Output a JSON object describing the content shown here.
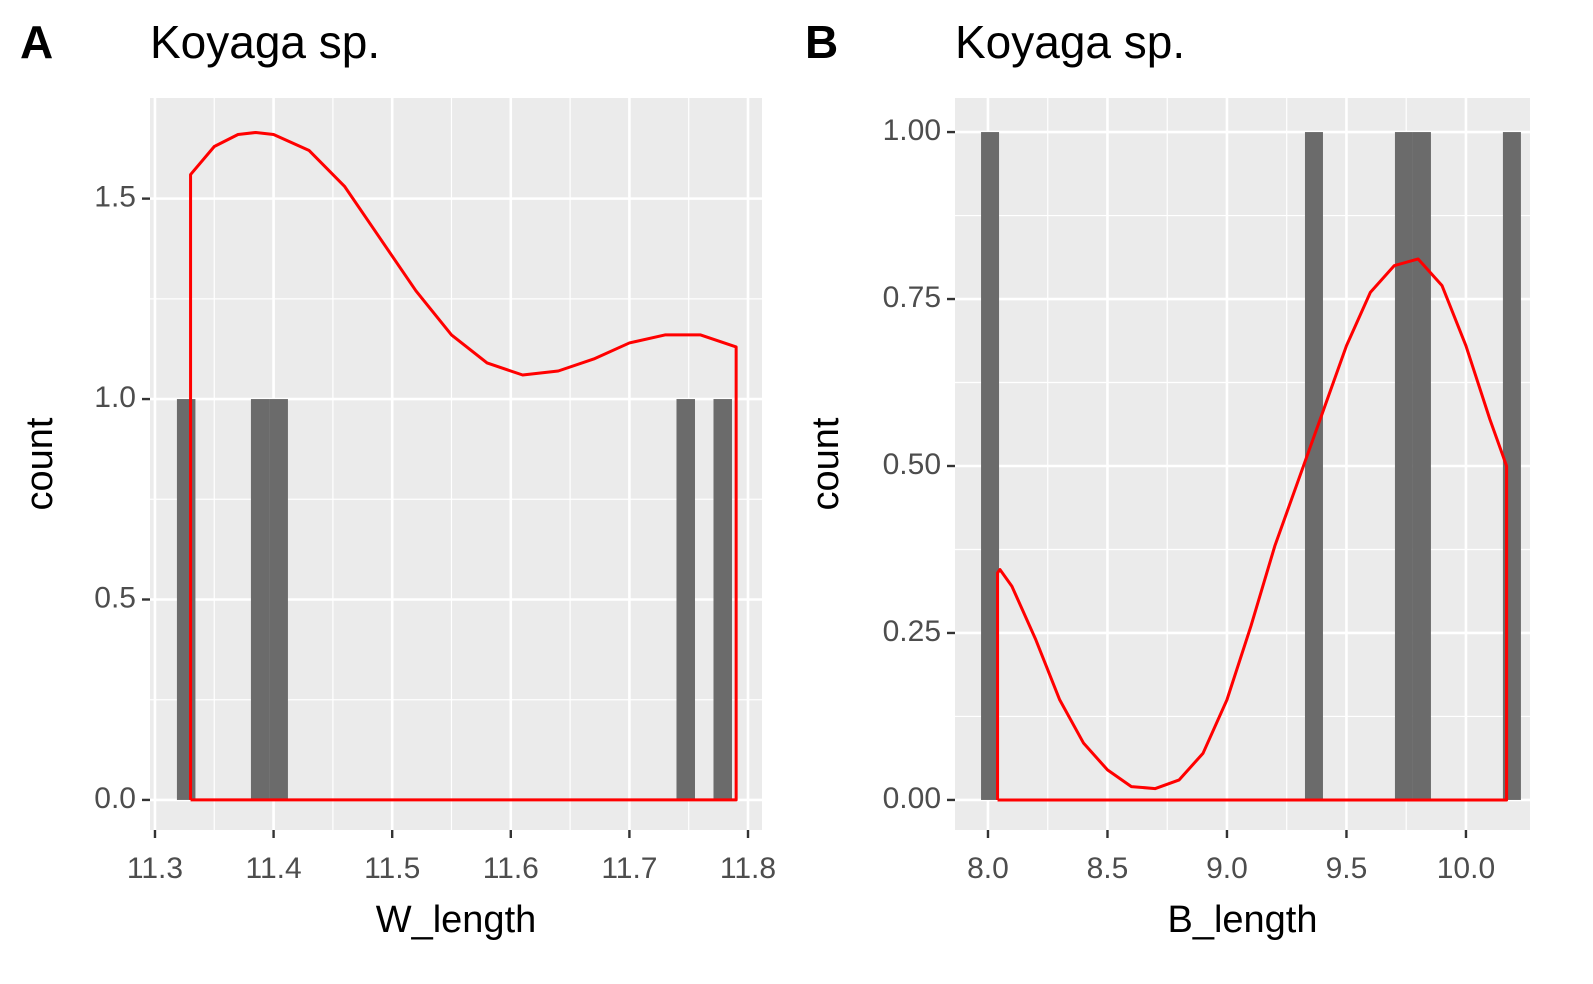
{
  "chart_data": [
    {
      "type": "histogram",
      "panel_label": "A",
      "title": "Koyaga sp.",
      "xlabel": "W_length",
      "ylabel": "count",
      "bins": [
        11.3185,
        11.3341,
        11.3497,
        11.3653,
        11.3809,
        11.3965,
        11.4121,
        11.4277,
        11.4433,
        11.4589,
        11.4745,
        11.4901,
        11.5057,
        11.5213,
        11.5369,
        11.5525,
        11.5681,
        11.5837,
        11.5993,
        11.6149,
        11.6305,
        11.6461,
        11.6617,
        11.6773,
        11.6929,
        11.7085,
        11.7241,
        11.7397,
        11.7553,
        11.7709,
        11.7865
      ],
      "counts": [
        1,
        0,
        0,
        0,
        1,
        1,
        0,
        0,
        0,
        0,
        0,
        0,
        0,
        0,
        0,
        0,
        0,
        0,
        0,
        0,
        0,
        0,
        0,
        0,
        0,
        0,
        0,
        1,
        0,
        1
      ],
      "color": "#6b6b6b",
      "density": {
        "color": "#ff0000",
        "x": [
          11.33,
          11.33,
          11.35,
          11.37,
          11.385,
          11.4,
          11.43,
          11.46,
          11.49,
          11.52,
          11.55,
          11.58,
          11.61,
          11.64,
          11.67,
          11.7,
          11.73,
          11.76,
          11.79,
          11.79,
          11.33
        ],
        "values": [
          0,
          1.56,
          1.63,
          1.66,
          1.665,
          1.66,
          1.62,
          1.53,
          1.4,
          1.27,
          1.16,
          1.09,
          1.06,
          1.07,
          1.1,
          1.14,
          1.16,
          1.16,
          1.13,
          0,
          0
        ]
      },
      "xlim": [
        11.2958,
        11.8118
      ],
      "ylim": [
        -0.075,
        1.751
      ],
      "xticks": [
        11.3,
        11.4,
        11.5,
        11.6,
        11.7,
        11.8
      ],
      "yticks": [
        {
          "value": 0,
          "label": "0.0"
        },
        0.5,
        {
          "value": 1,
          "label": "1.0"
        },
        1.5
      ],
      "grid": true
    },
    {
      "type": "histogram",
      "panel_label": "B",
      "title": "Koyaga sp.",
      "xlabel": "B_length",
      "ylabel": "count",
      "bins": [
        7.971,
        8.0463,
        8.1216,
        8.1969,
        8.2722,
        8.3475,
        8.4228,
        8.4981,
        8.5734,
        8.6487,
        8.724,
        8.7993,
        8.8746,
        8.9499,
        9.0252,
        9.1005,
        9.1758,
        9.2511,
        9.3264,
        9.4017,
        9.477,
        9.5523,
        9.6276,
        9.7029,
        9.7782,
        9.8535,
        9.9288,
        10.0041,
        10.0794,
        10.1547,
        10.23
      ],
      "counts": [
        1,
        0,
        0,
        0,
        0,
        0,
        0,
        0,
        0,
        0,
        0,
        0,
        0,
        0,
        0,
        0,
        0,
        0,
        1,
        0,
        0,
        0,
        0,
        1,
        1,
        0,
        0,
        0,
        0,
        1
      ],
      "color": "#6b6b6b",
      "density": {
        "color": "#ff0000",
        "x": [
          8.04,
          8.04,
          8.05,
          8.1,
          8.2,
          8.3,
          8.4,
          8.5,
          8.6,
          8.7,
          8.8,
          8.9,
          9.0,
          9.1,
          9.2,
          9.3,
          9.4,
          9.5,
          9.6,
          9.7,
          9.8,
          9.9,
          10.0,
          10.1,
          10.17,
          10.17,
          8.04
        ],
        "values": [
          0,
          0.34,
          0.345,
          0.32,
          0.24,
          0.15,
          0.085,
          0.045,
          0.02,
          0.017,
          0.03,
          0.07,
          0.15,
          0.26,
          0.38,
          0.48,
          0.58,
          0.68,
          0.76,
          0.8,
          0.81,
          0.77,
          0.68,
          0.57,
          0.5,
          0,
          0
        ]
      },
      "xlim": [
        7.862,
        10.268
      ],
      "ylim": [
        -0.045,
        1.051
      ],
      "xticks": [
        {
          "value": 8,
          "label": "8.0"
        },
        8.5,
        {
          "value": 9,
          "label": "9.0"
        },
        9.5,
        {
          "value": 10,
          "label": "10.0"
        }
      ],
      "yticks": [
        {
          "value": 0,
          "label": "0.00"
        },
        0.25,
        {
          "value": 0.5,
          "label": "0.50"
        },
        0.75,
        {
          "value": 1,
          "label": "1.00"
        }
      ],
      "grid": true
    }
  ]
}
